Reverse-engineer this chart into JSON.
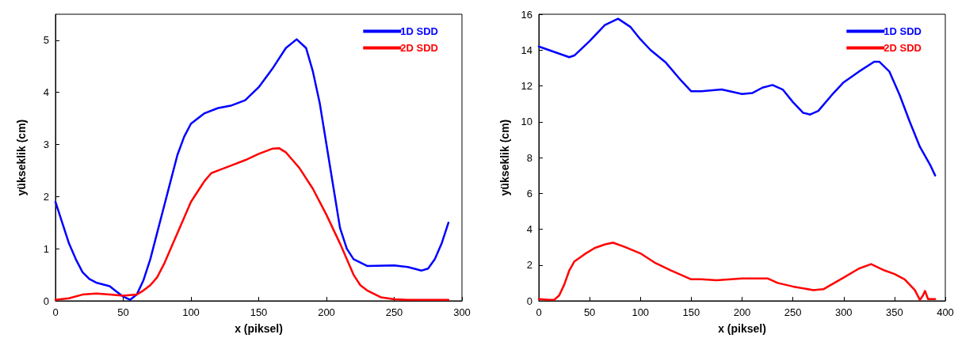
{
  "chart_data": [
    {
      "type": "line",
      "xlabel": "x (piksel)",
      "ylabel": "yükseklik (cm)",
      "xlim": [
        0,
        300
      ],
      "xticks": [
        0,
        50,
        100,
        150,
        200,
        250,
        300
      ],
      "ylim": [
        0,
        5.5
      ],
      "yticks": [
        0,
        1,
        2,
        3,
        4,
        5
      ],
      "legend": "top right",
      "grid": false,
      "marker": "none",
      "line_style": "solid",
      "series": [
        {
          "name": "1D SDD",
          "color": "#0000ff",
          "x": [
            0,
            5,
            10,
            15,
            20,
            25,
            30,
            40,
            45,
            50,
            55,
            60,
            65,
            70,
            75,
            80,
            85,
            90,
            95,
            100,
            110,
            120,
            130,
            140,
            150,
            160,
            170,
            178,
            185,
            190,
            195,
            200,
            205,
            210,
            215,
            220,
            230,
            250,
            260,
            270,
            275,
            280,
            285,
            290
          ],
          "values": [
            1.9,
            1.5,
            1.1,
            0.8,
            0.55,
            0.42,
            0.35,
            0.28,
            0.18,
            0.08,
            0.02,
            0.12,
            0.4,
            0.8,
            1.3,
            1.8,
            2.3,
            2.8,
            3.15,
            3.4,
            3.6,
            3.7,
            3.75,
            3.85,
            4.1,
            4.45,
            4.85,
            5.02,
            4.85,
            4.4,
            3.8,
            3.0,
            2.2,
            1.4,
            1.0,
            0.8,
            0.67,
            0.68,
            0.65,
            0.58,
            0.62,
            0.8,
            1.1,
            1.5
          ]
        },
        {
          "name": "2D SDD",
          "color": "#ff0000",
          "x": [
            0,
            10,
            20,
            30,
            40,
            50,
            60,
            65,
            70,
            75,
            80,
            85,
            90,
            95,
            100,
            105,
            110,
            115,
            120,
            130,
            140,
            150,
            160,
            165,
            170,
            175,
            180,
            190,
            200,
            210,
            215,
            220,
            225,
            230,
            240,
            250,
            260,
            290
          ],
          "values": [
            0.02,
            0.05,
            0.12,
            0.14,
            0.12,
            0.1,
            0.12,
            0.2,
            0.3,
            0.45,
            0.7,
            1.0,
            1.3,
            1.6,
            1.9,
            2.1,
            2.3,
            2.45,
            2.5,
            2.6,
            2.7,
            2.82,
            2.92,
            2.93,
            2.85,
            2.7,
            2.55,
            2.15,
            1.65,
            1.1,
            0.8,
            0.5,
            0.3,
            0.2,
            0.07,
            0.03,
            0.02,
            0.02
          ]
        }
      ]
    },
    {
      "type": "line",
      "xlabel": "x (piksel)",
      "ylabel": "yükseklik (cm)",
      "xlim": [
        0,
        400
      ],
      "xticks": [
        0,
        50,
        100,
        150,
        200,
        250,
        300,
        350,
        400
      ],
      "ylim": [
        0,
        16
      ],
      "yticks": [
        0,
        2,
        4,
        6,
        8,
        10,
        12,
        14,
        16
      ],
      "legend": "top right",
      "grid": false,
      "marker": "none",
      "line_style": "solid",
      "series": [
        {
          "name": "1D SDD",
          "color": "#0000ff",
          "x": [
            0,
            10,
            20,
            30,
            35,
            50,
            65,
            78,
            90,
            100,
            110,
            125,
            140,
            150,
            160,
            180,
            200,
            210,
            220,
            230,
            240,
            250,
            260,
            267,
            275,
            290,
            300,
            315,
            330,
            335,
            345,
            355,
            365,
            375,
            385,
            390
          ],
          "values": [
            14.2,
            14.0,
            13.8,
            13.6,
            13.7,
            14.5,
            15.4,
            15.75,
            15.3,
            14.6,
            14.0,
            13.3,
            12.3,
            11.7,
            11.7,
            11.8,
            11.55,
            11.6,
            11.9,
            12.05,
            11.8,
            11.1,
            10.5,
            10.4,
            10.6,
            11.6,
            12.2,
            12.8,
            13.35,
            13.35,
            12.8,
            11.5,
            10.0,
            8.6,
            7.6,
            7.0
          ]
        },
        {
          "name": "2D SDD",
          "color": "#ff0000",
          "x": [
            0,
            10,
            15,
            20,
            25,
            30,
            35,
            45,
            55,
            65,
            73,
            85,
            100,
            115,
            130,
            150,
            160,
            175,
            200,
            225,
            235,
            250,
            270,
            280,
            300,
            315,
            327,
            340,
            350,
            360,
            370,
            375,
            378,
            380,
            383,
            390
          ],
          "values": [
            0.1,
            0.05,
            0.05,
            0.3,
            0.9,
            1.7,
            2.2,
            2.6,
            2.95,
            3.15,
            3.25,
            3.0,
            2.65,
            2.1,
            1.7,
            1.2,
            1.2,
            1.15,
            1.25,
            1.25,
            1.0,
            0.8,
            0.6,
            0.65,
            1.3,
            1.8,
            2.05,
            1.7,
            1.5,
            1.2,
            0.6,
            0.05,
            0.3,
            0.55,
            0.1,
            0.1
          ]
        }
      ]
    }
  ]
}
